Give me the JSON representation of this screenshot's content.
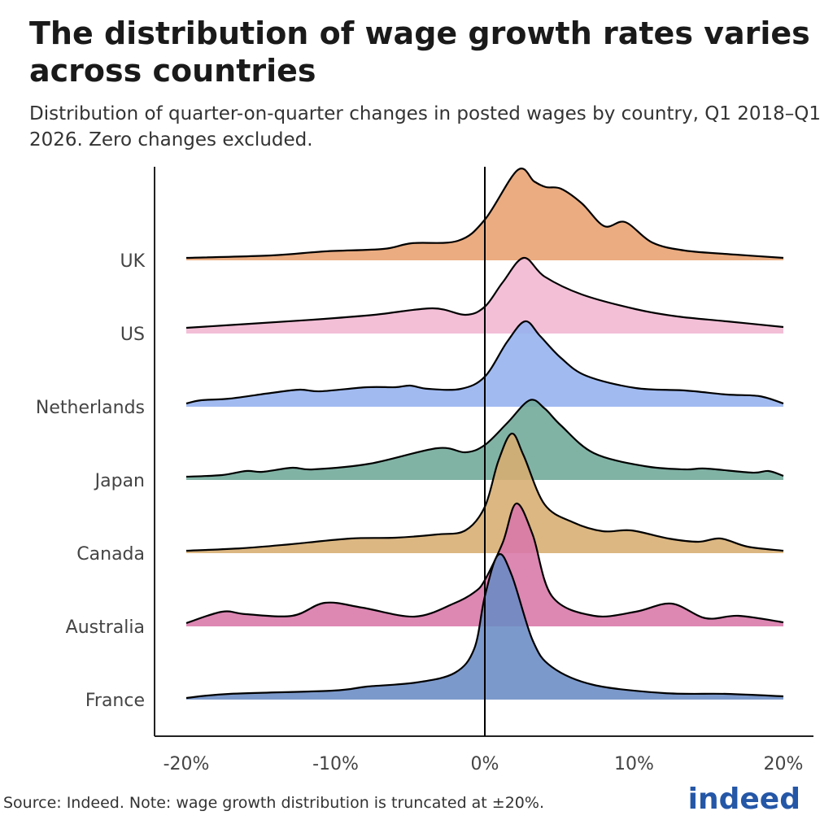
{
  "title": "The distribution of wage growth rates varies across countries",
  "subtitle": "Distribution of quarter-on-quarter changes in posted wages by country, Q1 2018–Q1 2026. Zero changes excluded.",
  "source": "Source: Indeed. Note: wage growth distribution is truncated at ±20%.",
  "logo_text": "indeed",
  "chart_data": {
    "type": "ridgeline",
    "xlim": [
      -20,
      20
    ],
    "x_ticks": [
      -20,
      -10,
      0,
      10,
      20
    ],
    "x_tick_labels": [
      "-20%",
      "-10%",
      "0%",
      "10%",
      "20%"
    ],
    "reference_line_x": 0,
    "grid": false,
    "series": [
      {
        "name": "UK",
        "color": "#E8A06F",
        "points": [
          [
            -20,
            0.03
          ],
          [
            -14.3,
            0.06
          ],
          [
            -10.7,
            0.11
          ],
          [
            -6.8,
            0.14
          ],
          [
            -4.9,
            0.21
          ],
          [
            -1.8,
            0.24
          ],
          [
            0,
            0.5
          ],
          [
            2.2,
            1.11
          ],
          [
            3.3,
            0.97
          ],
          [
            4.1,
            0.9
          ],
          [
            5.1,
            0.88
          ],
          [
            6.5,
            0.7
          ],
          [
            8.0,
            0.42
          ],
          [
            9.4,
            0.47
          ],
          [
            11.2,
            0.22
          ],
          [
            13.4,
            0.12
          ],
          [
            16.8,
            0.07
          ],
          [
            20,
            0.03
          ]
        ]
      },
      {
        "name": "US",
        "color": "#F1B6D2",
        "points": [
          [
            -20,
            0.07
          ],
          [
            -15.7,
            0.12
          ],
          [
            -11.5,
            0.17
          ],
          [
            -7.4,
            0.23
          ],
          [
            -3.5,
            0.31
          ],
          [
            -1.3,
            0.23
          ],
          [
            0,
            0.33
          ],
          [
            1.2,
            0.63
          ],
          [
            2.6,
            0.93
          ],
          [
            4.0,
            0.7
          ],
          [
            6.5,
            0.48
          ],
          [
            10.1,
            0.3
          ],
          [
            12.9,
            0.21
          ],
          [
            16.2,
            0.15
          ],
          [
            20,
            0.08
          ]
        ]
      },
      {
        "name": "Netherlands",
        "color": "#94B2EF",
        "points": [
          [
            -20,
            0.04
          ],
          [
            -19,
            0.08
          ],
          [
            -17.1,
            0.1
          ],
          [
            -14.3,
            0.17
          ],
          [
            -12.4,
            0.21
          ],
          [
            -11,
            0.19
          ],
          [
            -7.9,
            0.24
          ],
          [
            -6,
            0.24
          ],
          [
            -5,
            0.26
          ],
          [
            -3.8,
            0.22
          ],
          [
            -1.6,
            0.22
          ],
          [
            0,
            0.37
          ],
          [
            1.5,
            0.8
          ],
          [
            2.7,
            1.05
          ],
          [
            3.7,
            0.87
          ],
          [
            5.1,
            0.6
          ],
          [
            6.8,
            0.38
          ],
          [
            10.1,
            0.23
          ],
          [
            13.4,
            0.2
          ],
          [
            16.2,
            0.15
          ],
          [
            18.4,
            0.13
          ],
          [
            20,
            0.04
          ]
        ]
      },
      {
        "name": "Japan",
        "color": "#6FA898",
        "points": [
          [
            -20,
            0.04
          ],
          [
            -17.6,
            0.06
          ],
          [
            -16,
            0.11
          ],
          [
            -14.9,
            0.1
          ],
          [
            -12.9,
            0.15
          ],
          [
            -11.5,
            0.13
          ],
          [
            -7.7,
            0.2
          ],
          [
            -3.2,
            0.39
          ],
          [
            -1.3,
            0.34
          ],
          [
            0,
            0.43
          ],
          [
            1.5,
            0.7
          ],
          [
            3.0,
            0.98
          ],
          [
            4.0,
            0.88
          ],
          [
            5.1,
            0.67
          ],
          [
            7.3,
            0.33
          ],
          [
            10.7,
            0.17
          ],
          [
            13.4,
            0.13
          ],
          [
            14.8,
            0.14
          ],
          [
            17.9,
            0.09
          ],
          [
            19,
            0.11
          ],
          [
            20,
            0.05
          ]
        ]
      },
      {
        "name": "Canada",
        "color": "#D7AD71",
        "points": [
          [
            -20,
            0.03
          ],
          [
            -16.3,
            0.06
          ],
          [
            -13,
            0.11
          ],
          [
            -9,
            0.18
          ],
          [
            -6,
            0.19
          ],
          [
            -3.2,
            0.23
          ],
          [
            -1.3,
            0.28
          ],
          [
            0,
            0.57
          ],
          [
            0.9,
            1.13
          ],
          [
            1.8,
            1.47
          ],
          [
            2.6,
            1.2
          ],
          [
            4.0,
            0.6
          ],
          [
            5.9,
            0.38
          ],
          [
            7.9,
            0.27
          ],
          [
            9.8,
            0.28
          ],
          [
            12.3,
            0.18
          ],
          [
            14.3,
            0.14
          ],
          [
            15.8,
            0.18
          ],
          [
            17.6,
            0.08
          ],
          [
            20,
            0.03
          ]
        ]
      },
      {
        "name": "Australia",
        "color": "#D876A8",
        "points": [
          [
            -20,
            0.04
          ],
          [
            -17.6,
            0.18
          ],
          [
            -16,
            0.15
          ],
          [
            -12.9,
            0.13
          ],
          [
            -10.7,
            0.29
          ],
          [
            -8.2,
            0.23
          ],
          [
            -4.7,
            0.12
          ],
          [
            -2.1,
            0.28
          ],
          [
            -0.7,
            0.42
          ],
          [
            0,
            0.57
          ],
          [
            1.2,
            1.03
          ],
          [
            2.1,
            1.51
          ],
          [
            3.2,
            1.13
          ],
          [
            4.5,
            0.37
          ],
          [
            7.3,
            0.13
          ],
          [
            10.1,
            0.18
          ],
          [
            12.5,
            0.28
          ],
          [
            14.8,
            0.1
          ],
          [
            17,
            0.13
          ],
          [
            20,
            0.05
          ]
        ]
      },
      {
        "name": "France",
        "color": "#6A8BC4",
        "points": [
          [
            -20,
            0.02
          ],
          [
            -17.1,
            0.07
          ],
          [
            -10.2,
            0.11
          ],
          [
            -7.9,
            0.16
          ],
          [
            -4.6,
            0.21
          ],
          [
            -2,
            0.33
          ],
          [
            -0.7,
            0.63
          ],
          [
            0,
            1.27
          ],
          [
            0.9,
            1.78
          ],
          [
            1.8,
            1.53
          ],
          [
            3.2,
            0.73
          ],
          [
            4.5,
            0.4
          ],
          [
            7.3,
            0.18
          ],
          [
            12,
            0.08
          ],
          [
            16.2,
            0.07
          ],
          [
            20,
            0.04
          ]
        ]
      }
    ]
  }
}
